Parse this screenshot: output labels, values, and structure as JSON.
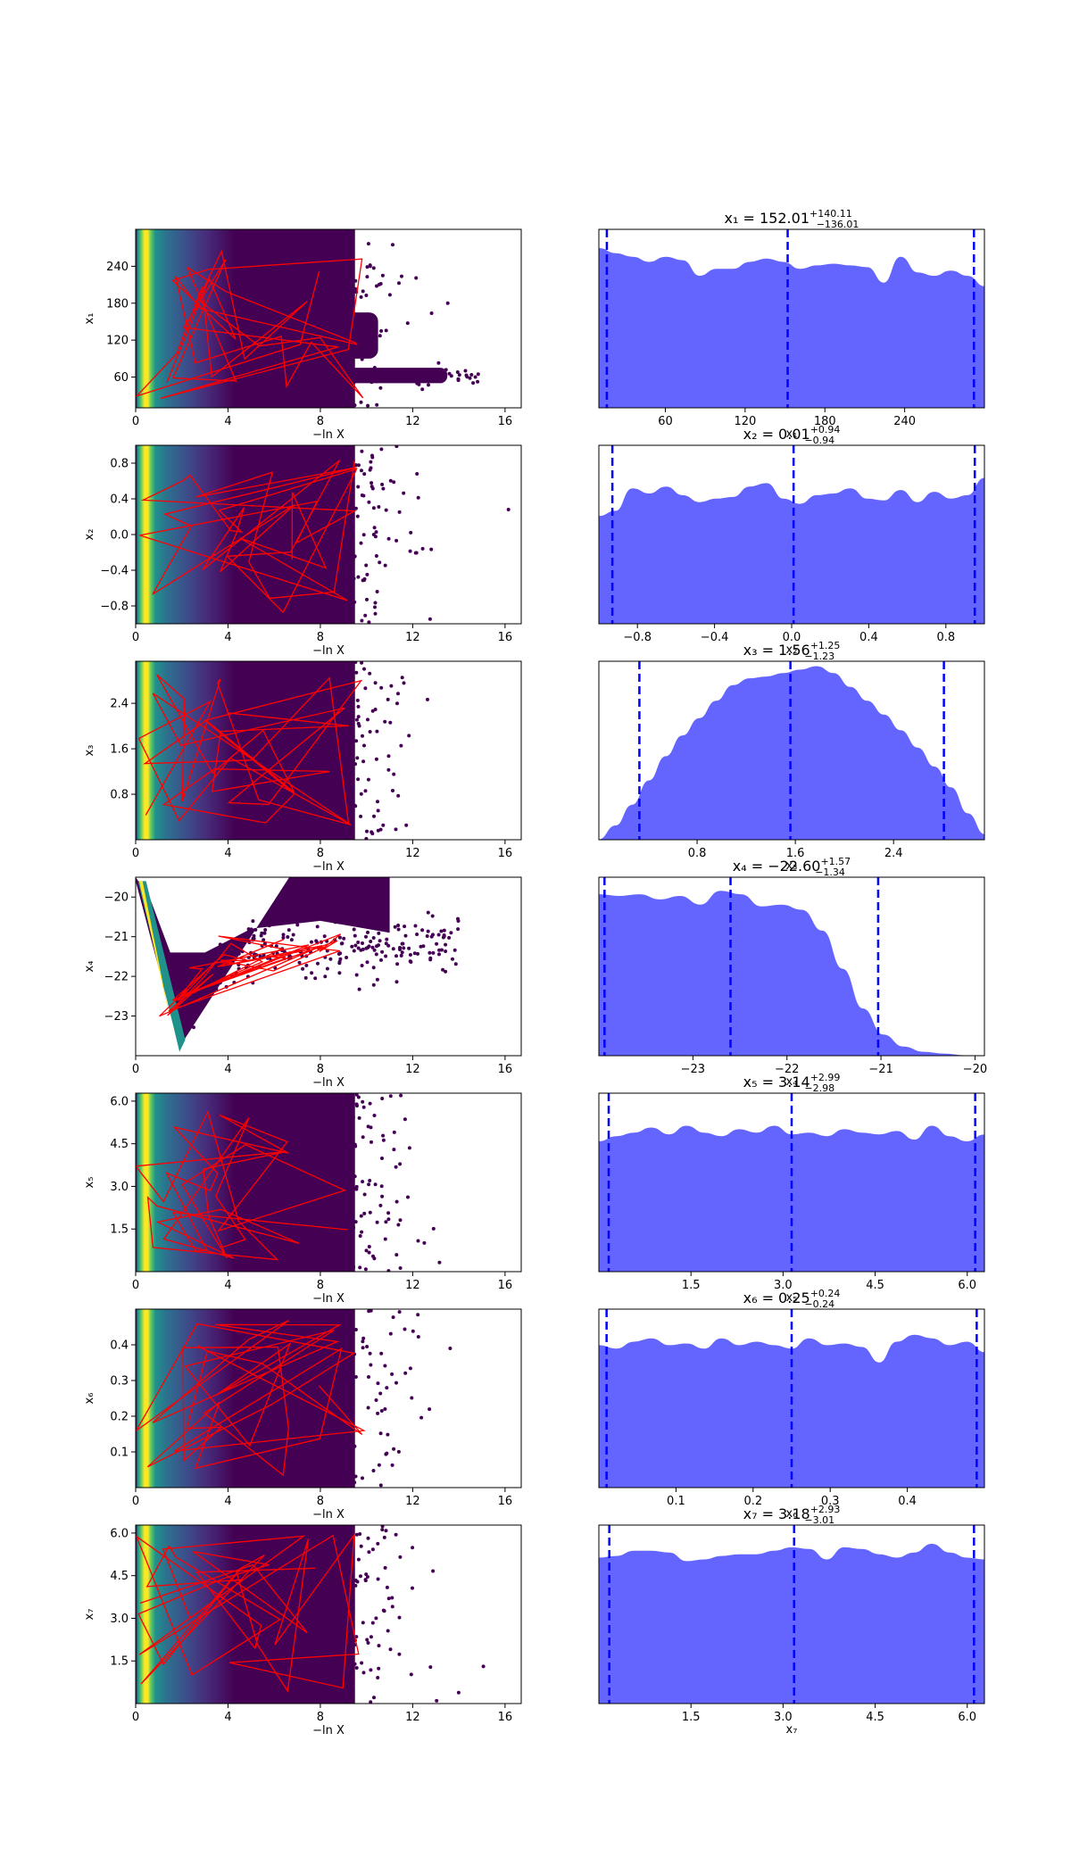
{
  "chart_data": {
    "type": "area",
    "figure": "trace-plot",
    "left_xlabel": "−ln X",
    "left_xticks": [
      0,
      4,
      8,
      12,
      16
    ],
    "left_xlim": [
      0,
      16.7
    ],
    "colors": {
      "samples_low": "#440154",
      "samples_high": "#fde725",
      "trajectory": "#ff0000",
      "posterior_fill": "#6464ff",
      "posterior_line": "#0000ff"
    },
    "rows": [
      {
        "ylabel": "x₁",
        "xlabel": "x₁",
        "title_main": "x₁ = 152.01",
        "title_sup": "+140.11",
        "title_sub": "−136.01",
        "left_ylim": [
          10,
          300
        ],
        "left_yticks": [
          60,
          120,
          180,
          240
        ],
        "right_xlim": [
          10,
          300
        ],
        "right_xticks": [
          60,
          120,
          180,
          240
        ],
        "median": 152.01,
        "lower": 16.0,
        "upper": 292.12,
        "density": [
          0.92,
          0.89,
          0.87,
          0.84,
          0.87,
          0.85,
          0.76,
          0.8,
          0.8,
          0.84,
          0.86,
          0.84,
          0.8,
          0.82,
          0.83,
          0.82,
          0.81,
          0.72,
          0.87,
          0.78,
          0.76,
          0.79,
          0.76,
          0.7
        ]
      },
      {
        "ylabel": "x₂",
        "xlabel": "x₂",
        "title_main": "x₂ = 0.01",
        "title_sup": "+0.94",
        "title_sub": "−0.94",
        "left_ylim": [
          -1,
          1
        ],
        "left_yticks": [
          -0.8,
          -0.4,
          0.0,
          0.4,
          0.8
        ],
        "right_xlim": [
          -1,
          1
        ],
        "right_xticks": [
          -0.8,
          -0.4,
          0.0,
          0.4,
          0.8
        ],
        "median": 0.01,
        "lower": -0.93,
        "upper": 0.95,
        "density": [
          0.62,
          0.65,
          0.78,
          0.75,
          0.79,
          0.74,
          0.7,
          0.72,
          0.73,
          0.79,
          0.81,
          0.72,
          0.69,
          0.74,
          0.75,
          0.78,
          0.72,
          0.71,
          0.77,
          0.7,
          0.76,
          0.72,
          0.74,
          0.84
        ]
      },
      {
        "ylabel": "x₃",
        "xlabel": "x₃",
        "title_main": "x₃ = 1.56",
        "title_sup": "+1.25",
        "title_sub": "−1.23",
        "left_ylim": [
          0,
          3.14
        ],
        "left_yticks": [
          0.8,
          1.6,
          2.4
        ],
        "right_xlim": [
          0,
          3.14
        ],
        "right_xticks": [
          0.8,
          1.6,
          2.4
        ],
        "median": 1.56,
        "lower": 0.33,
        "upper": 2.81,
        "density": [
          0.0,
          0.08,
          0.2,
          0.34,
          0.48,
          0.6,
          0.7,
          0.8,
          0.89,
          0.93,
          0.94,
          0.96,
          0.98,
          1.0,
          0.96,
          0.88,
          0.8,
          0.72,
          0.63,
          0.53,
          0.42,
          0.3,
          0.15,
          0.03
        ]
      },
      {
        "ylabel": "x₄",
        "xlabel": "x₄",
        "title_main": "x₄ = −22.60",
        "title_sup": "+1.57",
        "title_sub": "−1.34",
        "left_ylim": [
          -24,
          -19.5
        ],
        "left_yticks": [
          -23,
          -22,
          -21,
          -20
        ],
        "right_xlim": [
          -24,
          -19.9
        ],
        "right_xticks": [
          -23,
          -22,
          -21,
          -20
        ],
        "median": -22.6,
        "lower": -23.94,
        "upper": -21.03,
        "density": [
          0.93,
          0.92,
          0.93,
          0.9,
          0.92,
          0.87,
          0.95,
          0.93,
          0.86,
          0.87,
          0.84,
          0.72,
          0.5,
          0.27,
          0.12,
          0.05,
          0.02,
          0.01,
          0.0,
          0.0
        ]
      },
      {
        "ylabel": "x₅",
        "xlabel": "x₅",
        "title_main": "x₅ = 3.14",
        "title_sup": "+2.99",
        "title_sub": "−2.98",
        "left_ylim": [
          0,
          6.28
        ],
        "left_yticks": [
          1.5,
          3.0,
          4.5,
          6.0
        ],
        "right_xlim": [
          0,
          6.28
        ],
        "right_xticks": [
          1.5,
          3.0,
          4.5,
          6.0
        ],
        "median": 3.14,
        "lower": 0.16,
        "upper": 6.13,
        "density": [
          0.75,
          0.78,
          0.8,
          0.83,
          0.79,
          0.84,
          0.8,
          0.78,
          0.82,
          0.8,
          0.84,
          0.79,
          0.8,
          0.78,
          0.82,
          0.8,
          0.79,
          0.81,
          0.76,
          0.84,
          0.78,
          0.75,
          0.79
        ]
      },
      {
        "ylabel": "x₆",
        "xlabel": "x₆",
        "title_main": "x₆ = 0.25",
        "title_sup": "+0.24",
        "title_sub": "−0.24",
        "left_ylim": [
          0,
          0.5
        ],
        "left_yticks": [
          0.1,
          0.2,
          0.3,
          0.4
        ],
        "right_xlim": [
          0,
          0.5
        ],
        "right_xticks": [
          0.1,
          0.2,
          0.3,
          0.4
        ],
        "median": 0.25,
        "lower": 0.01,
        "upper": 0.49,
        "density": [
          0.82,
          0.8,
          0.84,
          0.86,
          0.82,
          0.83,
          0.8,
          0.86,
          0.82,
          0.84,
          0.82,
          0.8,
          0.86,
          0.82,
          0.83,
          0.81,
          0.72,
          0.84,
          0.88,
          0.86,
          0.82,
          0.84,
          0.78
        ]
      },
      {
        "ylabel": "x₇",
        "xlabel": "x₇",
        "title_main": "x₇ = 3.18",
        "title_sup": "+2.93",
        "title_sub": "−3.01",
        "left_ylim": [
          0,
          6.28
        ],
        "left_yticks": [
          1.5,
          3.0,
          4.5,
          6.0
        ],
        "right_xlim": [
          0,
          6.28
        ],
        "right_xticks": [
          1.5,
          3.0,
          4.5,
          6.0
        ],
        "median": 3.18,
        "lower": 0.17,
        "upper": 6.11,
        "density": [
          0.84,
          0.85,
          0.88,
          0.88,
          0.87,
          0.82,
          0.83,
          0.85,
          0.86,
          0.86,
          0.88,
          0.9,
          0.89,
          0.83,
          0.9,
          0.89,
          0.86,
          0.84,
          0.87,
          0.92,
          0.87,
          0.84,
          0.83
        ]
      }
    ]
  }
}
